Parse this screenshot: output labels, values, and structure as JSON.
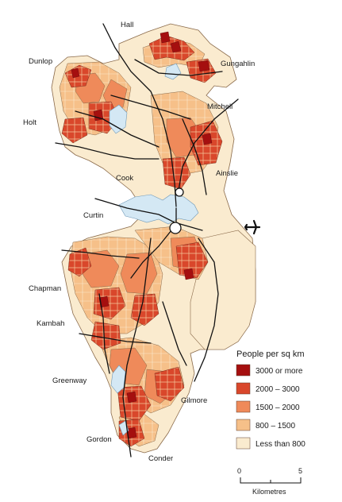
{
  "map": {
    "places": [
      {
        "id": "hall",
        "label": "Hall"
      },
      {
        "id": "dunlop",
        "label": "Dunlop"
      },
      {
        "id": "gungahlin",
        "label": "Gungahlin"
      },
      {
        "id": "mitchell",
        "label": "Mitchell"
      },
      {
        "id": "holt",
        "label": "Holt"
      },
      {
        "id": "ainslie",
        "label": "Ainslie"
      },
      {
        "id": "cook",
        "label": "Cook"
      },
      {
        "id": "curtin",
        "label": "Curtin"
      },
      {
        "id": "chapman",
        "label": "Chapman"
      },
      {
        "id": "kambah",
        "label": "Kambah"
      },
      {
        "id": "greenway",
        "label": "Greenway"
      },
      {
        "id": "gilmore",
        "label": "Gilmore"
      },
      {
        "id": "gordon",
        "label": "Gordon"
      },
      {
        "id": "conder",
        "label": "Conder"
      }
    ],
    "airport_icon": "airplane-icon",
    "legend": {
      "title": "People per sq km",
      "items": [
        {
          "label": "3000 or more",
          "color": "#a50f0f"
        },
        {
          "label": "2000 – 3000",
          "color": "#d9472b"
        },
        {
          "label": "1500 – 2000",
          "color": "#ef8a5a"
        },
        {
          "label": "800 – 1500",
          "color": "#f6c089"
        },
        {
          "label": "Less than 800",
          "color": "#faebcf"
        }
      ]
    },
    "scale": {
      "min_label": "0",
      "max_label": "5",
      "unit_label": "Kilometres"
    },
    "colors": {
      "water": "#d4e8f4",
      "roads": "#111111",
      "boundary": "#8a6a4a"
    }
  }
}
